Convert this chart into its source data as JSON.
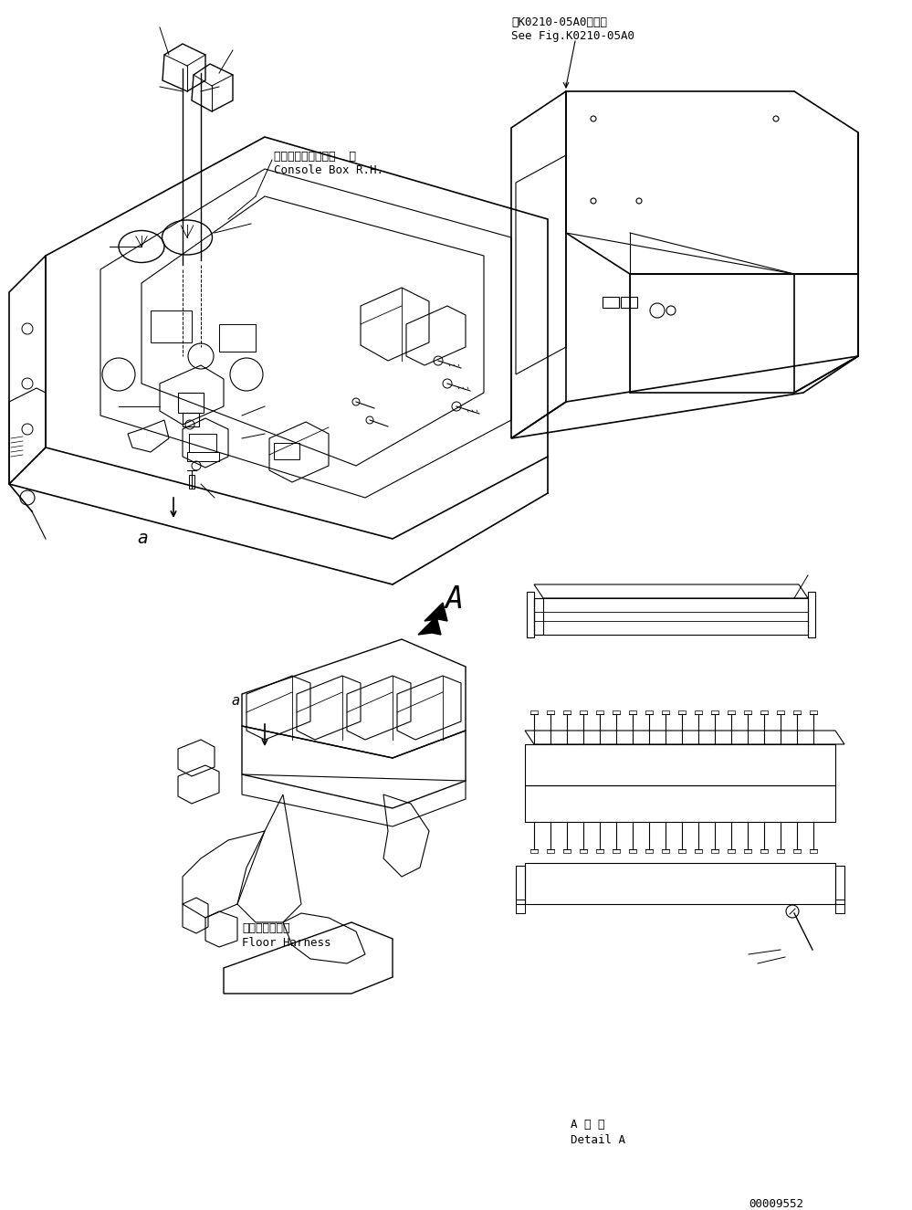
{
  "background_color": "#ffffff",
  "line_color": "#000000",
  "text_color": "#000000",
  "label_top_right_line1": "第K0210-05A0図参照",
  "label_top_right_line2": "See Fig.K0210-05A0",
  "label_console_box_line1": "コンソールボックス  右",
  "label_console_box_line2": "Console Box R.H.",
  "label_floor_harness_line1": "フロアハーネス",
  "label_floor_harness_line2": "Floor Harness",
  "label_detail_a_line1": "A 詳 細",
  "label_detail_a_line2": "Detail A",
  "label_a_main": "a",
  "label_a_sub": "a",
  "label_A_arrow": "A",
  "part_number": "00009552",
  "font_size_label": 9
}
